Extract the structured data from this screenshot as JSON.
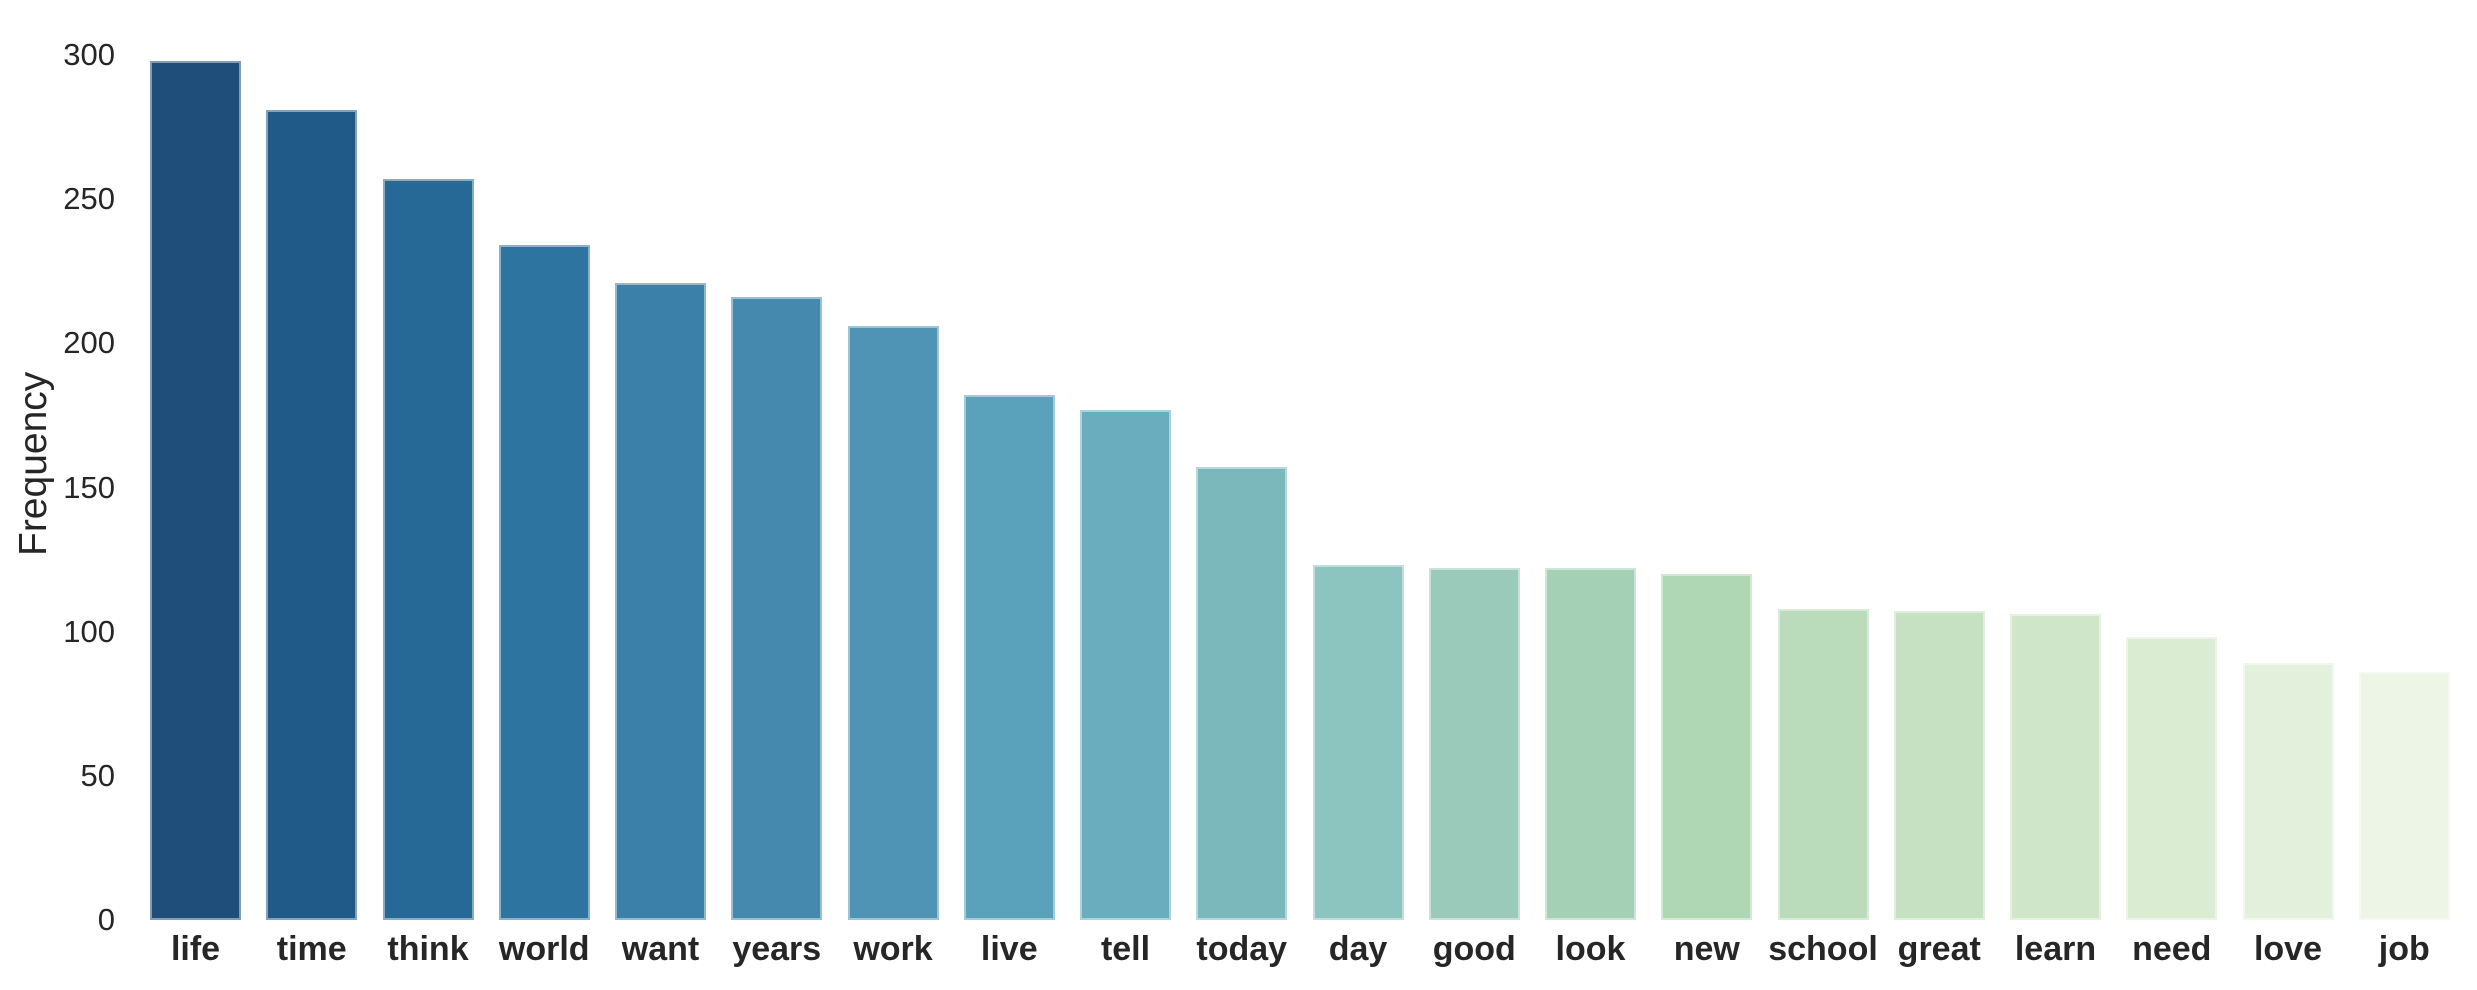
{
  "chart_data": {
    "type": "bar",
    "title": "",
    "xlabel": "",
    "ylabel": "Frequency",
    "categories": [
      "life",
      "time",
      "think",
      "world",
      "want",
      "years",
      "work",
      "live",
      "tell",
      "today",
      "day",
      "good",
      "look",
      "new",
      "school",
      "great",
      "learn",
      "need",
      "love",
      "job"
    ],
    "values": [
      298,
      281,
      257,
      234,
      221,
      216,
      206,
      182,
      177,
      157,
      123,
      122,
      122,
      120,
      108,
      107,
      106,
      98,
      89,
      86
    ],
    "bar_colors": [
      "#1e4e79",
      "#205a89",
      "#266896",
      "#2e74a0",
      "#3a80a8",
      "#458aae",
      "#4f94b5",
      "#5aa1bb",
      "#69adbe",
      "#7bb8bc",
      "#8cc4bf",
      "#9acbba",
      "#a4d1b6",
      "#afd7b4",
      "#bbdcba",
      "#c6e1c1",
      "#d0e6c8",
      "#daecd1",
      "#e3f0db",
      "#edf5e6"
    ],
    "ylim": [
      0,
      300
    ],
    "yticks": [
      0,
      50,
      100,
      150,
      200,
      250,
      300
    ],
    "grid": "off",
    "legend": "none",
    "background_color": "#ffffff",
    "text_color": "#262626"
  }
}
